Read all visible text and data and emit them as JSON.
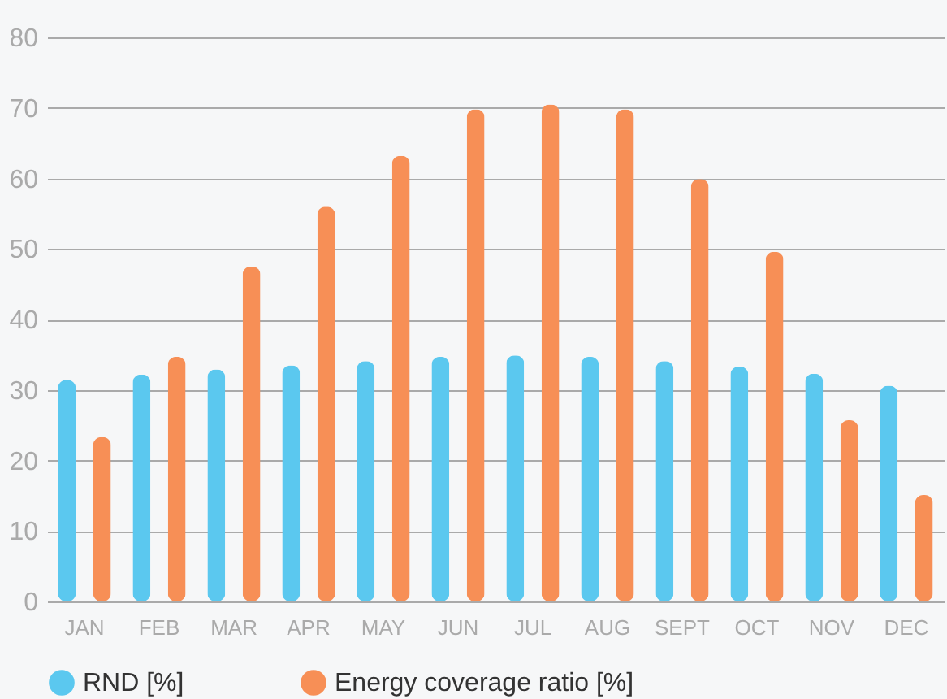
{
  "chart_data": {
    "type": "bar",
    "categories": [
      "JAN",
      "FEB",
      "MAR",
      "APR",
      "MAY",
      "JUN",
      "JUL",
      "AUG",
      "SEPT",
      "OCT",
      "NOV",
      "DEC"
    ],
    "series": [
      {
        "name": "RND [%]",
        "color": "#5bc8ef",
        "values": [
          31.4,
          32.2,
          32.9,
          33.5,
          34.1,
          34.7,
          34.9,
          34.7,
          34.1,
          33.3,
          32.3,
          30.6
        ]
      },
      {
        "name": "Energy coverage ratio [%]",
        "color": "#f78f56",
        "values": [
          23.3,
          34.7,
          47.5,
          56,
          63.2,
          69.8,
          70.5,
          69.8,
          59.9,
          49.6,
          25.7,
          15.1
        ]
      }
    ],
    "ylim": [
      0,
      80
    ],
    "yticks": [
      0,
      10,
      20,
      30,
      40,
      50,
      60,
      70,
      80
    ],
    "grid": "y",
    "legend": "bottom"
  }
}
